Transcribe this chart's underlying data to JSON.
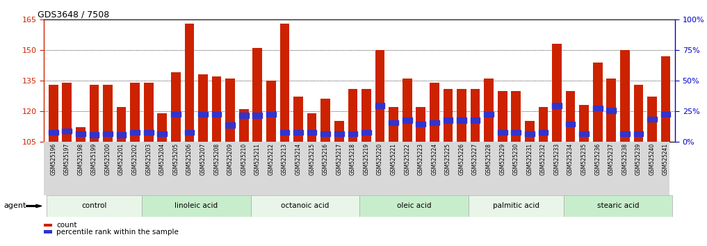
{
  "title": "GDS3648 / 7508",
  "samples": [
    "GSM525196",
    "GSM525197",
    "GSM525198",
    "GSM525199",
    "GSM525200",
    "GSM525201",
    "GSM525202",
    "GSM525203",
    "GSM525204",
    "GSM525205",
    "GSM525206",
    "GSM525207",
    "GSM525208",
    "GSM525209",
    "GSM525210",
    "GSM525211",
    "GSM525212",
    "GSM525213",
    "GSM525214",
    "GSM525215",
    "GSM525216",
    "GSM525217",
    "GSM525218",
    "GSM525219",
    "GSM525220",
    "GSM525221",
    "GSM525222",
    "GSM525223",
    "GSM525224",
    "GSM525225",
    "GSM525226",
    "GSM525227",
    "GSM525228",
    "GSM525229",
    "GSM525230",
    "GSM525231",
    "GSM525232",
    "GSM525233",
    "GSM525234",
    "GSM525235",
    "GSM525236",
    "GSM525237",
    "GSM525238",
    "GSM525239",
    "GSM525240",
    "GSM525241"
  ],
  "counts": [
    133,
    134,
    112,
    133,
    133,
    122,
    134,
    134,
    119,
    139,
    163,
    138,
    137,
    136,
    121,
    151,
    135,
    163,
    127,
    119,
    126,
    115,
    131,
    131,
    150,
    122,
    136,
    122,
    134,
    131,
    131,
    131,
    136,
    130,
    130,
    115,
    122,
    153,
    130,
    123,
    144,
    136,
    150,
    133,
    127,
    147
  ],
  "percentile_ranks": [
    7,
    8,
    6,
    5,
    6,
    5,
    7,
    7,
    6,
    22,
    7,
    22,
    22,
    13,
    21,
    21,
    22,
    7,
    7,
    7,
    6,
    6,
    6,
    7,
    29,
    15,
    17,
    14,
    15,
    17,
    17,
    17,
    22,
    7,
    7,
    6,
    7,
    29,
    14,
    6,
    27,
    25,
    6,
    6,
    18,
    22
  ],
  "groups": [
    {
      "name": "control",
      "start": 0,
      "end": 7
    },
    {
      "name": "linoleic acid",
      "start": 7,
      "end": 15
    },
    {
      "name": "octanoic acid",
      "start": 15,
      "end": 23
    },
    {
      "name": "oleic acid",
      "start": 23,
      "end": 31
    },
    {
      "name": "palmitic acid",
      "start": 31,
      "end": 38
    },
    {
      "name": "stearic acid",
      "start": 38,
      "end": 46
    }
  ],
  "group_colors": [
    "#e8f5e8",
    "#c8edcc",
    "#e8f5e8",
    "#c8edcc",
    "#e8f5e8",
    "#c8edcc"
  ],
  "bar_color": "#cc2200",
  "percentile_color": "#3333cc",
  "ylim_left": [
    105,
    165
  ],
  "ylim_right": [
    0,
    100
  ],
  "yticks_left": [
    105,
    120,
    135,
    150,
    165
  ],
  "yticks_right": [
    0,
    25,
    50,
    75,
    100
  ],
  "ytick_labels_right": [
    "0%",
    "25%",
    "50%",
    "75%",
    "100%"
  ],
  "background_color": "#ffffff",
  "bar_width": 0.7,
  "legend_count_label": "count",
  "legend_percentile_label": "percentile rank within the sample",
  "agent_label": "agent",
  "xtick_bg_color": "#d8d8d8"
}
